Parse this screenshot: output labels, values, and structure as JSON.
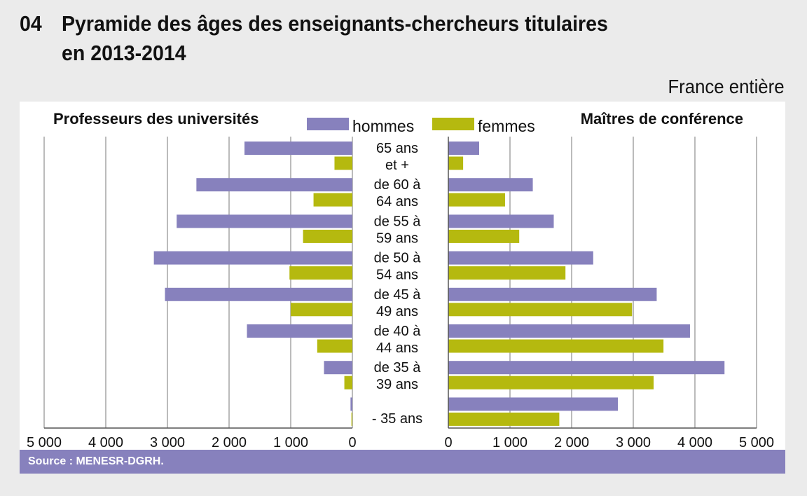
{
  "header": {
    "number": "04",
    "title_line1": "Pyramide des âges des enseignants-chercheurs titulaires",
    "title_line2": "en 2013-2014",
    "scope": "France entière"
  },
  "source": "Source : MENESR-DGRH.",
  "colors": {
    "hommes": "#8781bd",
    "femmes": "#b5b90f",
    "grid": "#777777",
    "axis": "#555555"
  },
  "chart_data": {
    "type": "bar",
    "subtype": "population-pyramid",
    "legend": [
      "hommes",
      "femmes"
    ],
    "categories": [
      [
        "65 ans",
        "et +"
      ],
      [
        "de 60 à",
        "64 ans"
      ],
      [
        "de 55 à",
        "59 ans"
      ],
      [
        "de 50 à",
        "54 ans"
      ],
      [
        "de 45 à",
        "49 ans"
      ],
      [
        "de 40 à",
        "44 ans"
      ],
      [
        "de 35 à",
        "39 ans"
      ],
      [
        "- 35 ans"
      ]
    ],
    "left": {
      "title": "Professeurs des universités",
      "xlim": [
        0,
        5000
      ],
      "ticks": [
        "5 000",
        "4 000",
        "3 000",
        "2 000",
        "1 000",
        "0"
      ],
      "tick_values": [
        5000,
        4000,
        3000,
        2000,
        1000,
        0
      ],
      "series": [
        {
          "name": "hommes",
          "values": [
            1750,
            2530,
            2850,
            3220,
            3040,
            1710,
            460,
            30
          ]
        },
        {
          "name": "femmes",
          "values": [
            290,
            630,
            800,
            1020,
            1000,
            570,
            130,
            15
          ]
        }
      ]
    },
    "right": {
      "title": "Maîtres de conférence",
      "xlim": [
        0,
        5000
      ],
      "ticks": [
        "0",
        "1 000",
        "2 000",
        "3 000",
        "4 000",
        "5 000"
      ],
      "tick_values": [
        0,
        1000,
        2000,
        3000,
        4000,
        5000
      ],
      "series": [
        {
          "name": "hommes",
          "values": [
            500,
            1370,
            1710,
            2350,
            3380,
            3920,
            4480,
            2750
          ]
        },
        {
          "name": "femmes",
          "values": [
            240,
            920,
            1150,
            1900,
            2980,
            3490,
            3330,
            1800
          ]
        }
      ]
    }
  }
}
